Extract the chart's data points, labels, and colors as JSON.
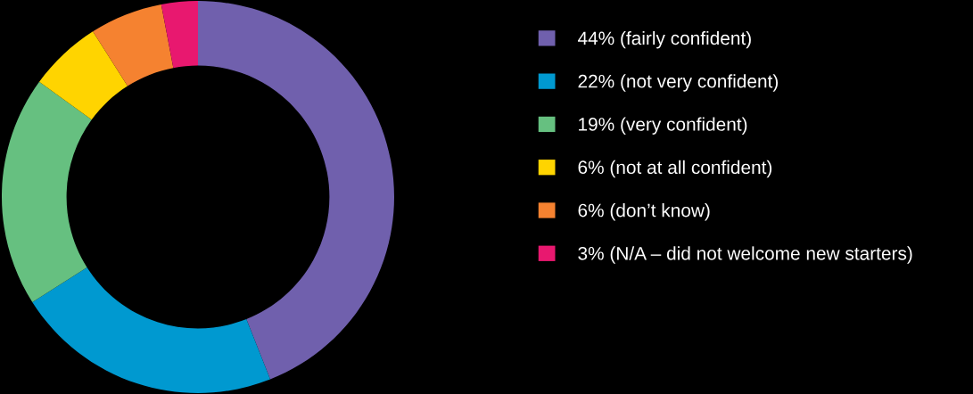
{
  "chart_data": {
    "type": "donut",
    "categories": [
      "44% (fairly confident)",
      "22% (not very confident)",
      "19% (very confident)",
      "6% (not at all confident)",
      "6% (don’t know)",
      "3% (N/A – did not welcome new starters)"
    ],
    "values": [
      44,
      22,
      19,
      6,
      6,
      3
    ],
    "colors": [
      "#7060ad",
      "#0099d0",
      "#66c080",
      "#ffd400",
      "#f58230",
      "#e8186f"
    ],
    "legend": "right"
  }
}
